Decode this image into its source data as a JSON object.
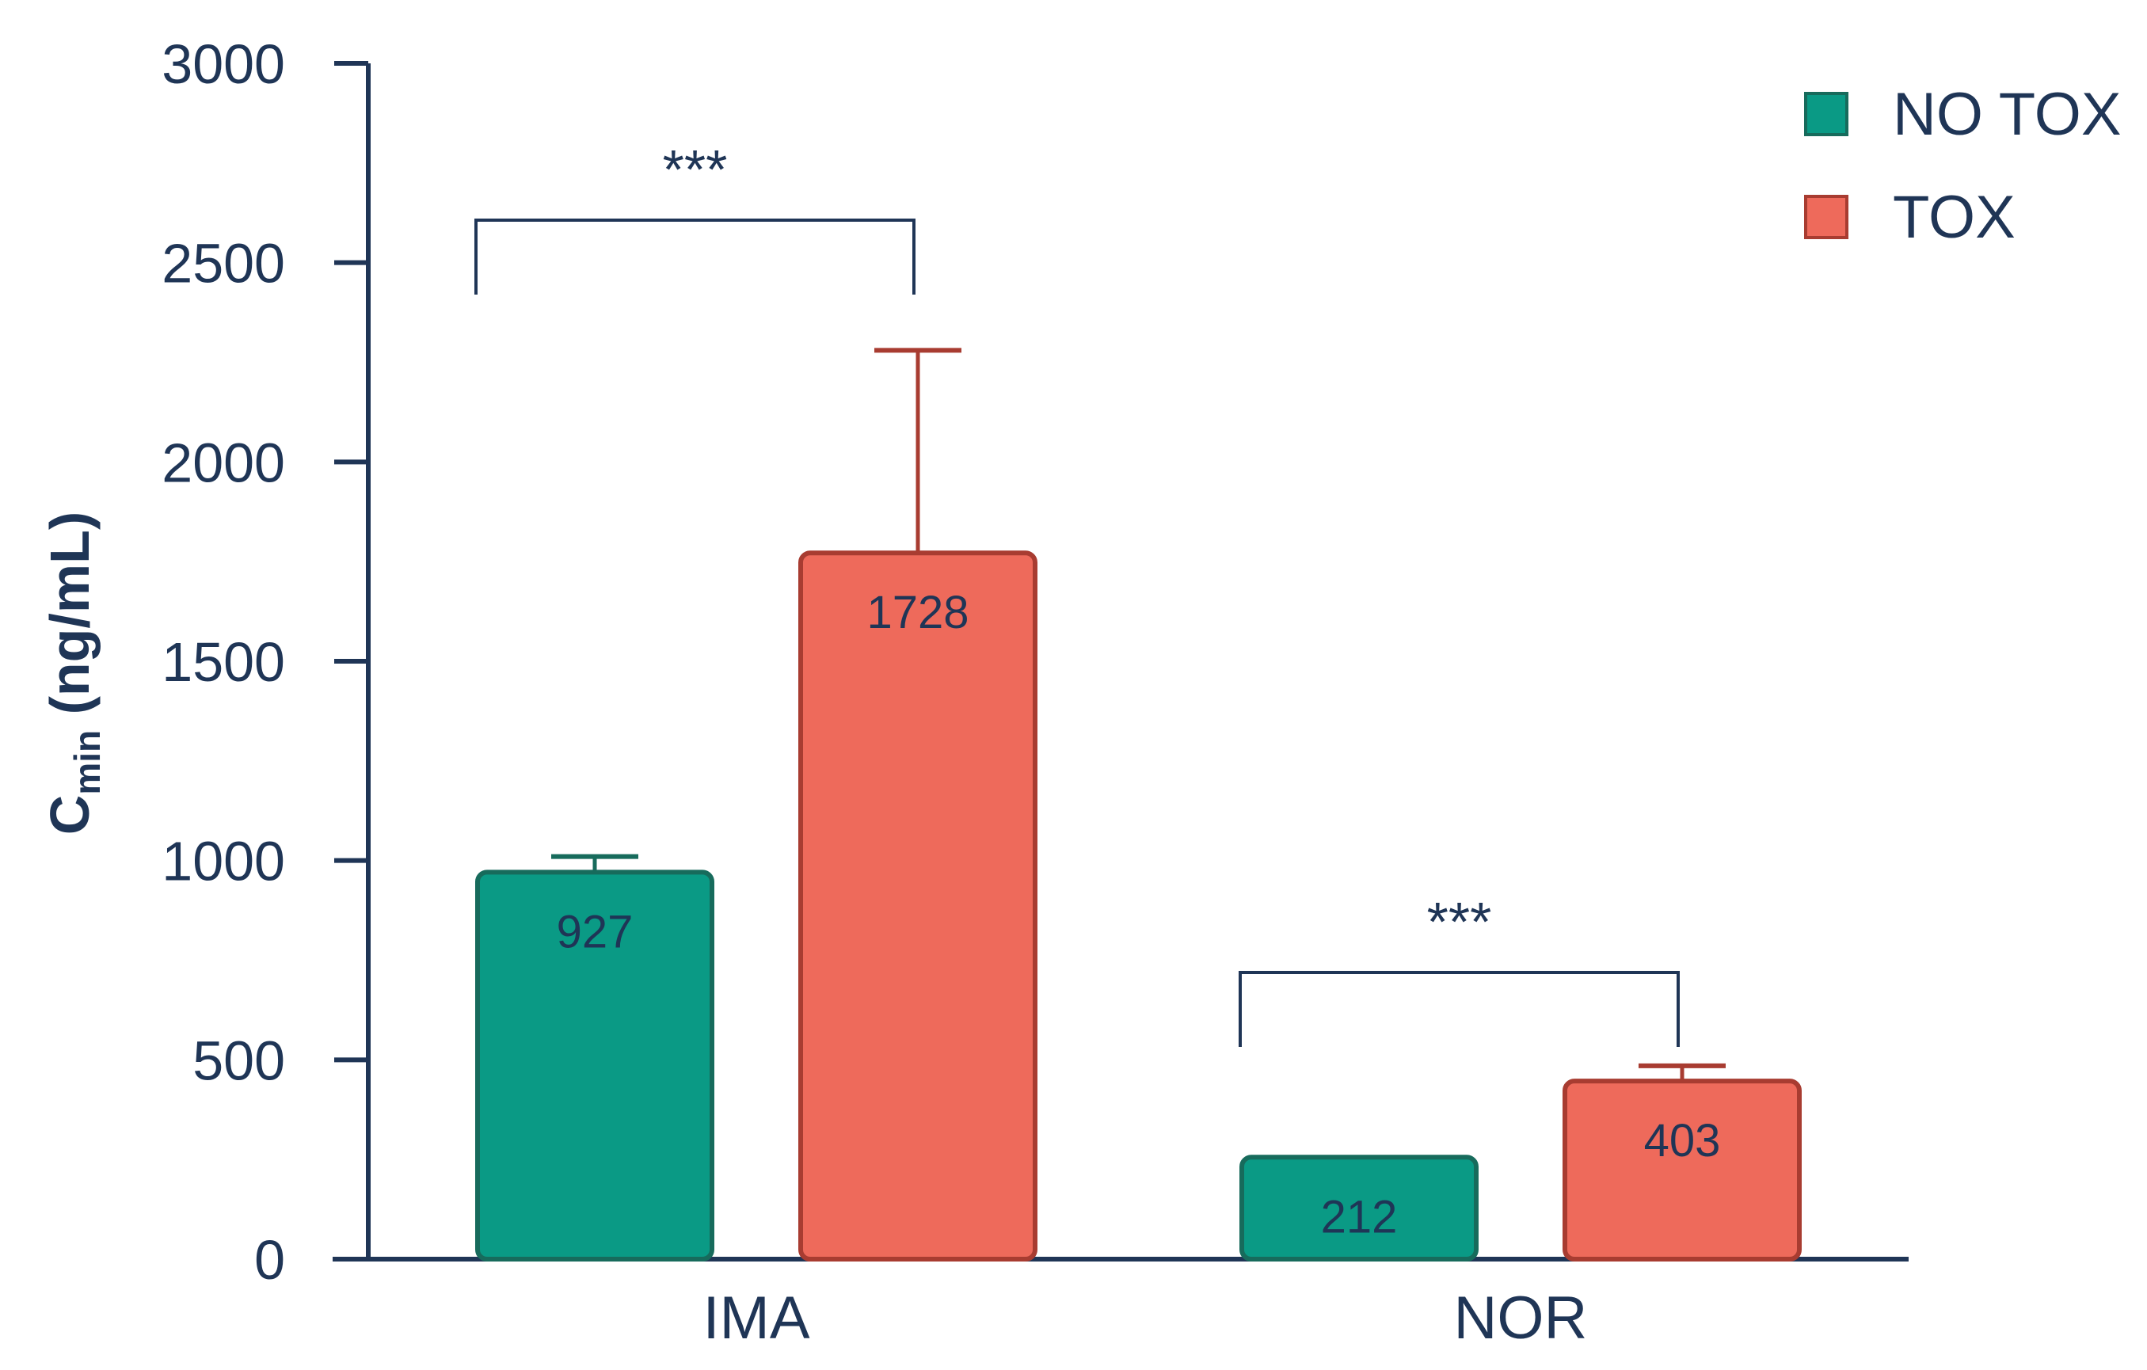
{
  "chart_data": {
    "type": "bar",
    "categories": [
      "IMA",
      "NOR"
    ],
    "series": [
      {
        "name": "NO TOX",
        "color": "#0a9a85",
        "edge": "#176b5c",
        "values": [
          927,
          212
        ],
        "labels": [
          "927",
          "212"
        ],
        "error_upper": [
          1010,
          230
        ]
      },
      {
        "name": "TOX",
        "color": "#ee6a5b",
        "edge": "#a83c31",
        "values": [
          1728,
          403
        ],
        "labels": [
          "1728",
          "403"
        ],
        "error_upper": [
          2280,
          485
        ]
      }
    ],
    "ylim": [
      0,
      3000
    ],
    "yticks": [
      "0",
      "500",
      "1000",
      "1500",
      "2000",
      "2500",
      "3000"
    ],
    "ylabel_main": "C",
    "ylabel_sub": "min",
    "ylabel_unit": " (ng/mL)",
    "xlabel": "",
    "title": "",
    "legend_position": "top-right",
    "grid": false,
    "significance": [
      {
        "category": "IMA",
        "label": "***"
      },
      {
        "category": "NOR",
        "label": "***"
      }
    ],
    "axis_color": "#1f3556"
  }
}
